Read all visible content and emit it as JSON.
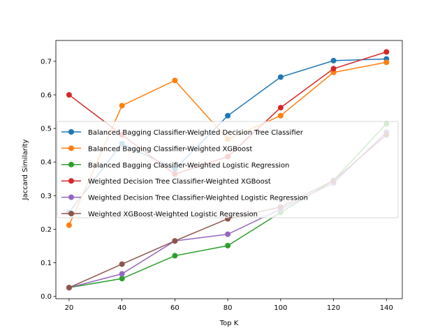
{
  "chart_data": {
    "type": "line",
    "title": "",
    "xlabel": "Top K",
    "ylabel": "Jaccard Similarity",
    "x": [
      20,
      40,
      60,
      80,
      100,
      120,
      140
    ],
    "xlim": [
      15,
      146
    ],
    "ylim": [
      -0.007,
      0.762
    ],
    "xticks": [
      20,
      40,
      60,
      80,
      100,
      120,
      140
    ],
    "yticks": [
      0.0,
      0.1,
      0.2,
      0.3,
      0.4,
      0.5,
      0.6,
      0.7
    ],
    "ytick_labels": [
      "0.0",
      "0.1",
      "0.2",
      "0.3",
      "0.4",
      "0.5",
      "0.6",
      "0.7"
    ],
    "grid": false,
    "legend_placement": "center-left",
    "series": [
      {
        "name": "Balanced Bagging Classifier-Weighted Decision Tree Classifier",
        "color": "#1f77b4",
        "values": [
          0.25,
          0.455,
          0.379,
          0.538,
          0.653,
          0.702,
          0.707
        ]
      },
      {
        "name": "Balanced Bagging Classifier-Weighted XGBoost",
        "color": "#ff7f0e",
        "values": [
          0.212,
          0.568,
          0.643,
          0.468,
          0.538,
          0.667,
          0.697
        ]
      },
      {
        "name": "Balanced Bagging Classifier-Weighted Logistic Regression",
        "color": "#2ca02c",
        "values": [
          0.026,
          0.053,
          0.121,
          0.151,
          0.25,
          0.345,
          0.514
        ]
      },
      {
        "name": "Weighted Decision Tree Classifier-Weighted XGBoost",
        "color": "#d62728",
        "values": [
          0.6,
          0.481,
          0.364,
          0.416,
          0.562,
          0.678,
          0.728
        ]
      },
      {
        "name": "Weighted Decision Tree Classifier-Weighted Logistic Regression",
        "color": "#9467bd",
        "values": [
          0.026,
          0.067,
          0.165,
          0.185,
          0.26,
          0.338,
          0.489
        ]
      },
      {
        "name": "Weighted XGBoost-Weighted Logistic Regression",
        "color": "#8c564b",
        "values": [
          0.026,
          0.096,
          0.165,
          0.231,
          0.266,
          0.345,
          0.481
        ]
      }
    ]
  }
}
